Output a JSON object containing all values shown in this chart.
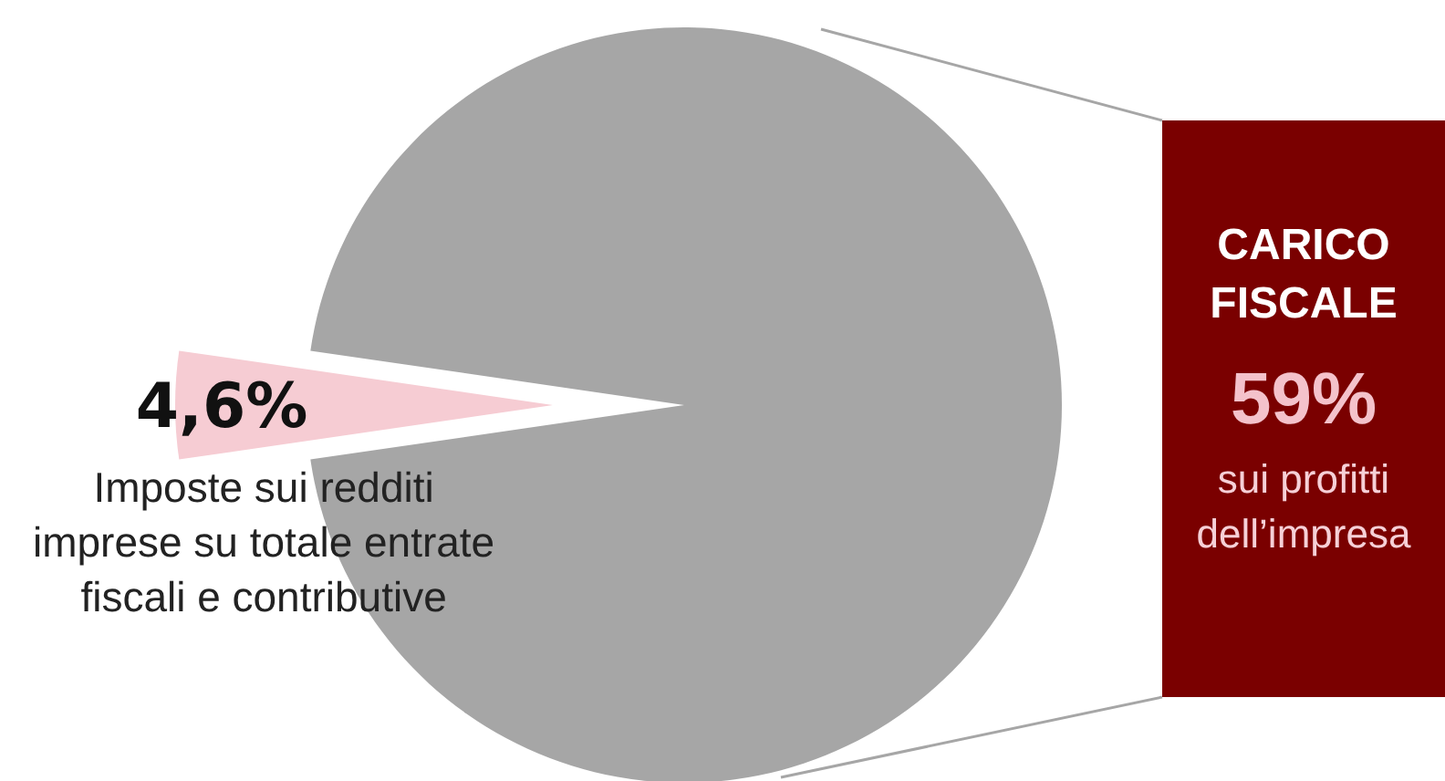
{
  "chart_data": {
    "type": "pie",
    "categories": [
      "Imposte sui redditi imprese su totale entrate fiscali e contributive",
      null
    ],
    "values": [
      4.6,
      95.4
    ],
    "value_labels": [
      "4,6%",
      null
    ],
    "colors": [
      "#f6ccd3",
      "#a6a6a6"
    ],
    "annotations": [
      "CARICO FISCALE",
      "59%",
      "sui profitti dell’impresa"
    ]
  }
}
